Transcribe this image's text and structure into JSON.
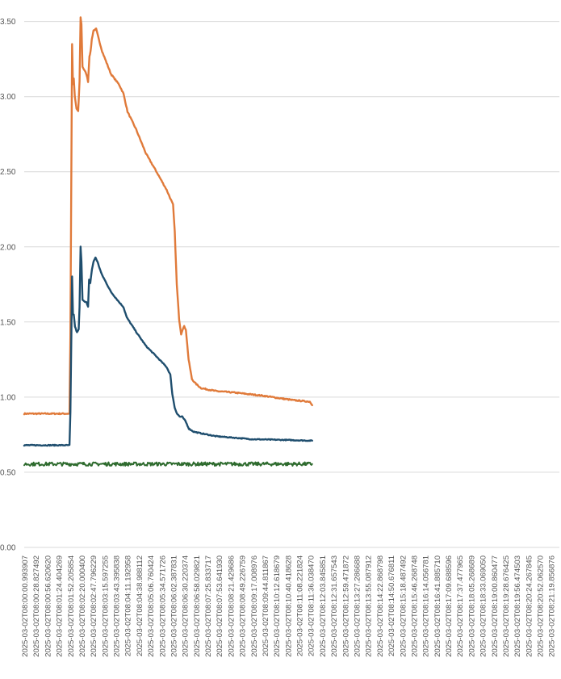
{
  "chart_data": {
    "type": "line",
    "title": "",
    "xlabel": "",
    "ylabel": "",
    "ylim": [
      0,
      3.6
    ],
    "y_ticks": [
      "0.00",
      "0.50",
      "1.00",
      "1.50",
      "2.00",
      "2.50",
      "3.00",
      "3.50"
    ],
    "grid": true,
    "legend": "none",
    "x_tick_labels": [
      "2025-03-02T08:00:00.993907",
      "2025-03-02T08:00:28.827492",
      "2025-03-02T08:00:56.620620",
      "2025-03-02T08:01:24.404269",
      "2025-03-02T08:01:52.205854",
      "2025-03-02T08:02:20.000400",
      "2025-03-02T08:02:47.796229",
      "2025-03-02T08:03:15.597255",
      "2025-03-02T08:03:43.395838",
      "2025-03-02T08:04:11.192958",
      "2025-03-02T08:04:38.988112",
      "2025-03-02T08:05:06.760424",
      "2025-03-02T08:05:34.571726",
      "2025-03-02T08:06:02.387831",
      "2025-03-02T08:06:30.220374",
      "2025-03-02T08:06:58.029821",
      "2025-03-02T08:07:25.833717",
      "2025-03-02T08:07:53.641930",
      "2025-03-02T08:08:21.429686",
      "2025-03-02T08:08:49.226759",
      "2025-03-02T08:09:17.008976",
      "2025-03-02T08:09:44.811867",
      "2025-03-02T08:10:12.618679",
      "2025-03-02T08:10:40.418628",
      "2025-03-02T08:11:08.221824",
      "2025-03-02T08:11:36.038470",
      "2025-03-02T08:12:03.845851",
      "2025-03-02T08:12:31.657543",
      "2025-03-02T08:12:59.471872",
      "2025-03-02T08:13:27.286688",
      "2025-03-02T08:13:55.087912",
      "2025-03-02T08:14:22.868798",
      "2025-03-02T08:14:50.676811",
      "2025-03-02T08:15:18.487492",
      "2025-03-02T08:15:46.268748",
      "2025-03-02T08:16:14.056781",
      "2025-03-02T08:16:41.885710",
      "2025-03-02T08:17:09.688596",
      "2025-03-02T08:17:37.477965",
      "2025-03-02T08:18:05.268689",
      "2025-03-02T08:18:33.069050",
      "2025-03-02T08:19:00.860477",
      "2025-03-02T08:19:28.676425",
      "2025-03-02T08:19:56.474503",
      "2025-03-02T08:20:24.267845",
      "2025-03-02T08:20:52.062570",
      "2025-03-02T08:21:19.856876"
    ],
    "x_range": [
      "2025-03-02T08:00:00.993907",
      "2025-03-02T08:21:40"
    ],
    "series": [
      {
        "color": "#e07a3a",
        "stroke_weight": 2.4,
        "noise": 0.004,
        "points": [
          [
            "2025-03-02T08:00:00.993907",
            0.89
          ],
          [
            "2025-03-02T08:01:50.900000",
            0.89
          ],
          [
            "2025-03-02T08:01:53.100000",
            1.42
          ],
          [
            "2025-03-02T08:01:57.200000",
            3.35
          ],
          [
            "2025-03-02T08:01:59.300000",
            3.08
          ],
          [
            "2025-03-02T08:02:01.300000",
            3.12
          ],
          [
            "2025-03-02T08:02:03.800000",
            3.0
          ],
          [
            "2025-03-02T08:02:07.900000",
            2.92
          ],
          [
            "2025-03-02T08:02:12.000000",
            2.9
          ],
          [
            "2025-03-02T08:02:15.300000",
            3.1
          ],
          [
            "2025-03-02T08:02:17.800000",
            3.53
          ],
          [
            "2025-03-02T08:02:19.900000",
            3.48
          ],
          [
            "2025-03-02T08:02:22.500000",
            3.2
          ],
          [
            "2025-03-02T08:02:26.200000",
            3.18
          ],
          [
            "2025-03-02T08:02:31.900000",
            3.15
          ],
          [
            "2025-03-02T08:02:36.000000",
            3.1
          ],
          [
            "2025-03-02T08:02:39.300000",
            3.27
          ],
          [
            "2025-03-02T08:02:42.100000",
            3.3
          ],
          [
            "2025-03-02T08:02:45.000000",
            3.38
          ],
          [
            "2025-03-02T08:02:49.100000",
            3.44
          ],
          [
            "2025-03-02T08:02:55.600000",
            3.45
          ],
          [
            "2025-03-02T08:03:02.200000",
            3.38
          ],
          [
            "2025-03-02T08:03:10.300000",
            3.3
          ],
          [
            "2025-03-02T08:03:31.600000",
            3.15
          ],
          [
            "2025-03-02T08:03:51.300000",
            3.08
          ],
          [
            "2025-03-02T08:04:01.900000",
            3.02
          ],
          [
            "2025-03-02T08:04:11.700000",
            2.9
          ],
          [
            "2025-03-02T08:04:32.900000",
            2.78
          ],
          [
            "2025-03-02T08:04:56.700000",
            2.62
          ],
          [
            "2025-03-02T08:05:22.100000",
            2.5
          ],
          [
            "2025-03-02T08:05:46.600000",
            2.38
          ],
          [
            "2025-03-02T08:06:02.300000",
            2.28
          ],
          [
            "2025-03-02T08:06:06.400000",
            2.1
          ],
          [
            "2025-03-02T08:06:11.300000",
            1.75
          ],
          [
            "2025-03-02T08:06:17.000000",
            1.52
          ],
          [
            "2025-03-02T08:06:21.900000",
            1.42
          ],
          [
            "2025-03-02T08:06:25.200000",
            1.45
          ],
          [
            "2025-03-02T08:06:29.300000",
            1.47
          ],
          [
            "2025-03-02T08:06:33.400000",
            1.45
          ],
          [
            "2025-03-02T08:06:40.000000",
            1.25
          ],
          [
            "2025-03-02T08:06:48.100000",
            1.12
          ],
          [
            "2025-03-02T08:06:57.100000",
            1.09
          ],
          [
            "2025-03-02T08:07:10.200000",
            1.06
          ],
          [
            "2025-03-02T08:07:47.100000",
            1.04
          ],
          [
            "2025-03-02T08:08:32.200000",
            1.03
          ],
          [
            "2025-03-02T08:09:38.600000",
            1.01
          ],
          [
            "2025-03-02T08:10:53.200000",
            0.98
          ],
          [
            "2025-03-02T08:11:34.200000",
            0.97
          ],
          [
            "2025-03-02T08:11:39.900000",
            0.95
          ]
        ]
      },
      {
        "color": "#1f4e6e",
        "stroke_weight": 2.4,
        "noise": 0.003,
        "points": [
          [
            "2025-03-02T08:00:00.993907",
            0.68
          ],
          [
            "2025-03-02T08:01:50.900000",
            0.68
          ],
          [
            "2025-03-02T08:01:53.100000",
            0.9
          ],
          [
            "2025-03-02T08:01:57.200000",
            1.8
          ],
          [
            "2025-03-02T08:01:59.300000",
            1.55
          ],
          [
            "2025-03-02T08:02:01.300000",
            1.55
          ],
          [
            "2025-03-02T08:02:04.200000",
            1.47
          ],
          [
            "2025-03-02T08:02:09.100000",
            1.43
          ],
          [
            "2025-03-02T08:02:13.200000",
            1.45
          ],
          [
            "2025-03-02T08:02:15.300000",
            1.6
          ],
          [
            "2025-03-02T08:02:17.800000",
            2.0
          ],
          [
            "2025-03-02T08:02:19.900000",
            1.9
          ],
          [
            "2025-03-02T08:02:22.500000",
            1.65
          ],
          [
            "2025-03-02T08:02:26.600000",
            1.64
          ],
          [
            "2025-03-02T08:02:31.900000",
            1.63
          ],
          [
            "2025-03-02T08:02:36.000000",
            1.6
          ],
          [
            "2025-03-02T08:02:38.500000",
            1.78
          ],
          [
            "2025-03-02T08:02:41.300000",
            1.76
          ],
          [
            "2025-03-02T08:02:45.400000",
            1.85
          ],
          [
            "2025-03-02T08:02:49.100000",
            1.9
          ],
          [
            "2025-03-02T08:02:54.000000",
            1.93
          ],
          [
            "2025-03-02T08:02:58.900000",
            1.9
          ],
          [
            "2025-03-02T08:03:08.700000",
            1.82
          ],
          [
            "2025-03-02T08:03:31.600000",
            1.7
          ],
          [
            "2025-03-02T08:03:52.000000",
            1.63
          ],
          [
            "2025-03-02T08:04:01.800000",
            1.6
          ],
          [
            "2025-03-02T08:04:10.000000",
            1.53
          ],
          [
            "2025-03-02T08:04:36.200000",
            1.42
          ],
          [
            "2025-03-02T08:04:56.700000",
            1.34
          ],
          [
            "2025-03-02T08:05:22.100000",
            1.27
          ],
          [
            "2025-03-02T08:05:46.600000",
            1.2
          ],
          [
            "2025-03-02T08:05:55.600000",
            1.15
          ],
          [
            "2025-03-02T08:06:00.500000",
            1.02
          ],
          [
            "2025-03-02T08:06:06.300000",
            0.93
          ],
          [
            "2025-03-02T08:06:12.000000",
            0.89
          ],
          [
            "2025-03-02T08:06:18.600000",
            0.87
          ],
          [
            "2025-03-02T08:06:24.300000",
            0.87
          ],
          [
            "2025-03-02T08:06:32.500000",
            0.84
          ],
          [
            "2025-03-02T08:06:40.700000",
            0.79
          ],
          [
            "2025-03-02T08:06:52.200000",
            0.77
          ],
          [
            "2025-03-02T08:07:08.600000",
            0.76
          ],
          [
            "2025-03-02T08:07:45.500000",
            0.74
          ],
          [
            "2025-03-02T08:09:14.000000",
            0.72
          ],
          [
            "2025-03-02T08:10:35.900000",
            0.715
          ],
          [
            "2025-03-02T08:11:39.900000",
            0.71
          ]
        ]
      },
      {
        "color": "#2e6b2e",
        "stroke_weight": 2.0,
        "noise": 0.012,
        "points": [
          [
            "2025-03-02T08:00:00.993907",
            0.555
          ],
          [
            "2025-03-02T08:11:39.900000",
            0.555
          ]
        ]
      }
    ]
  }
}
